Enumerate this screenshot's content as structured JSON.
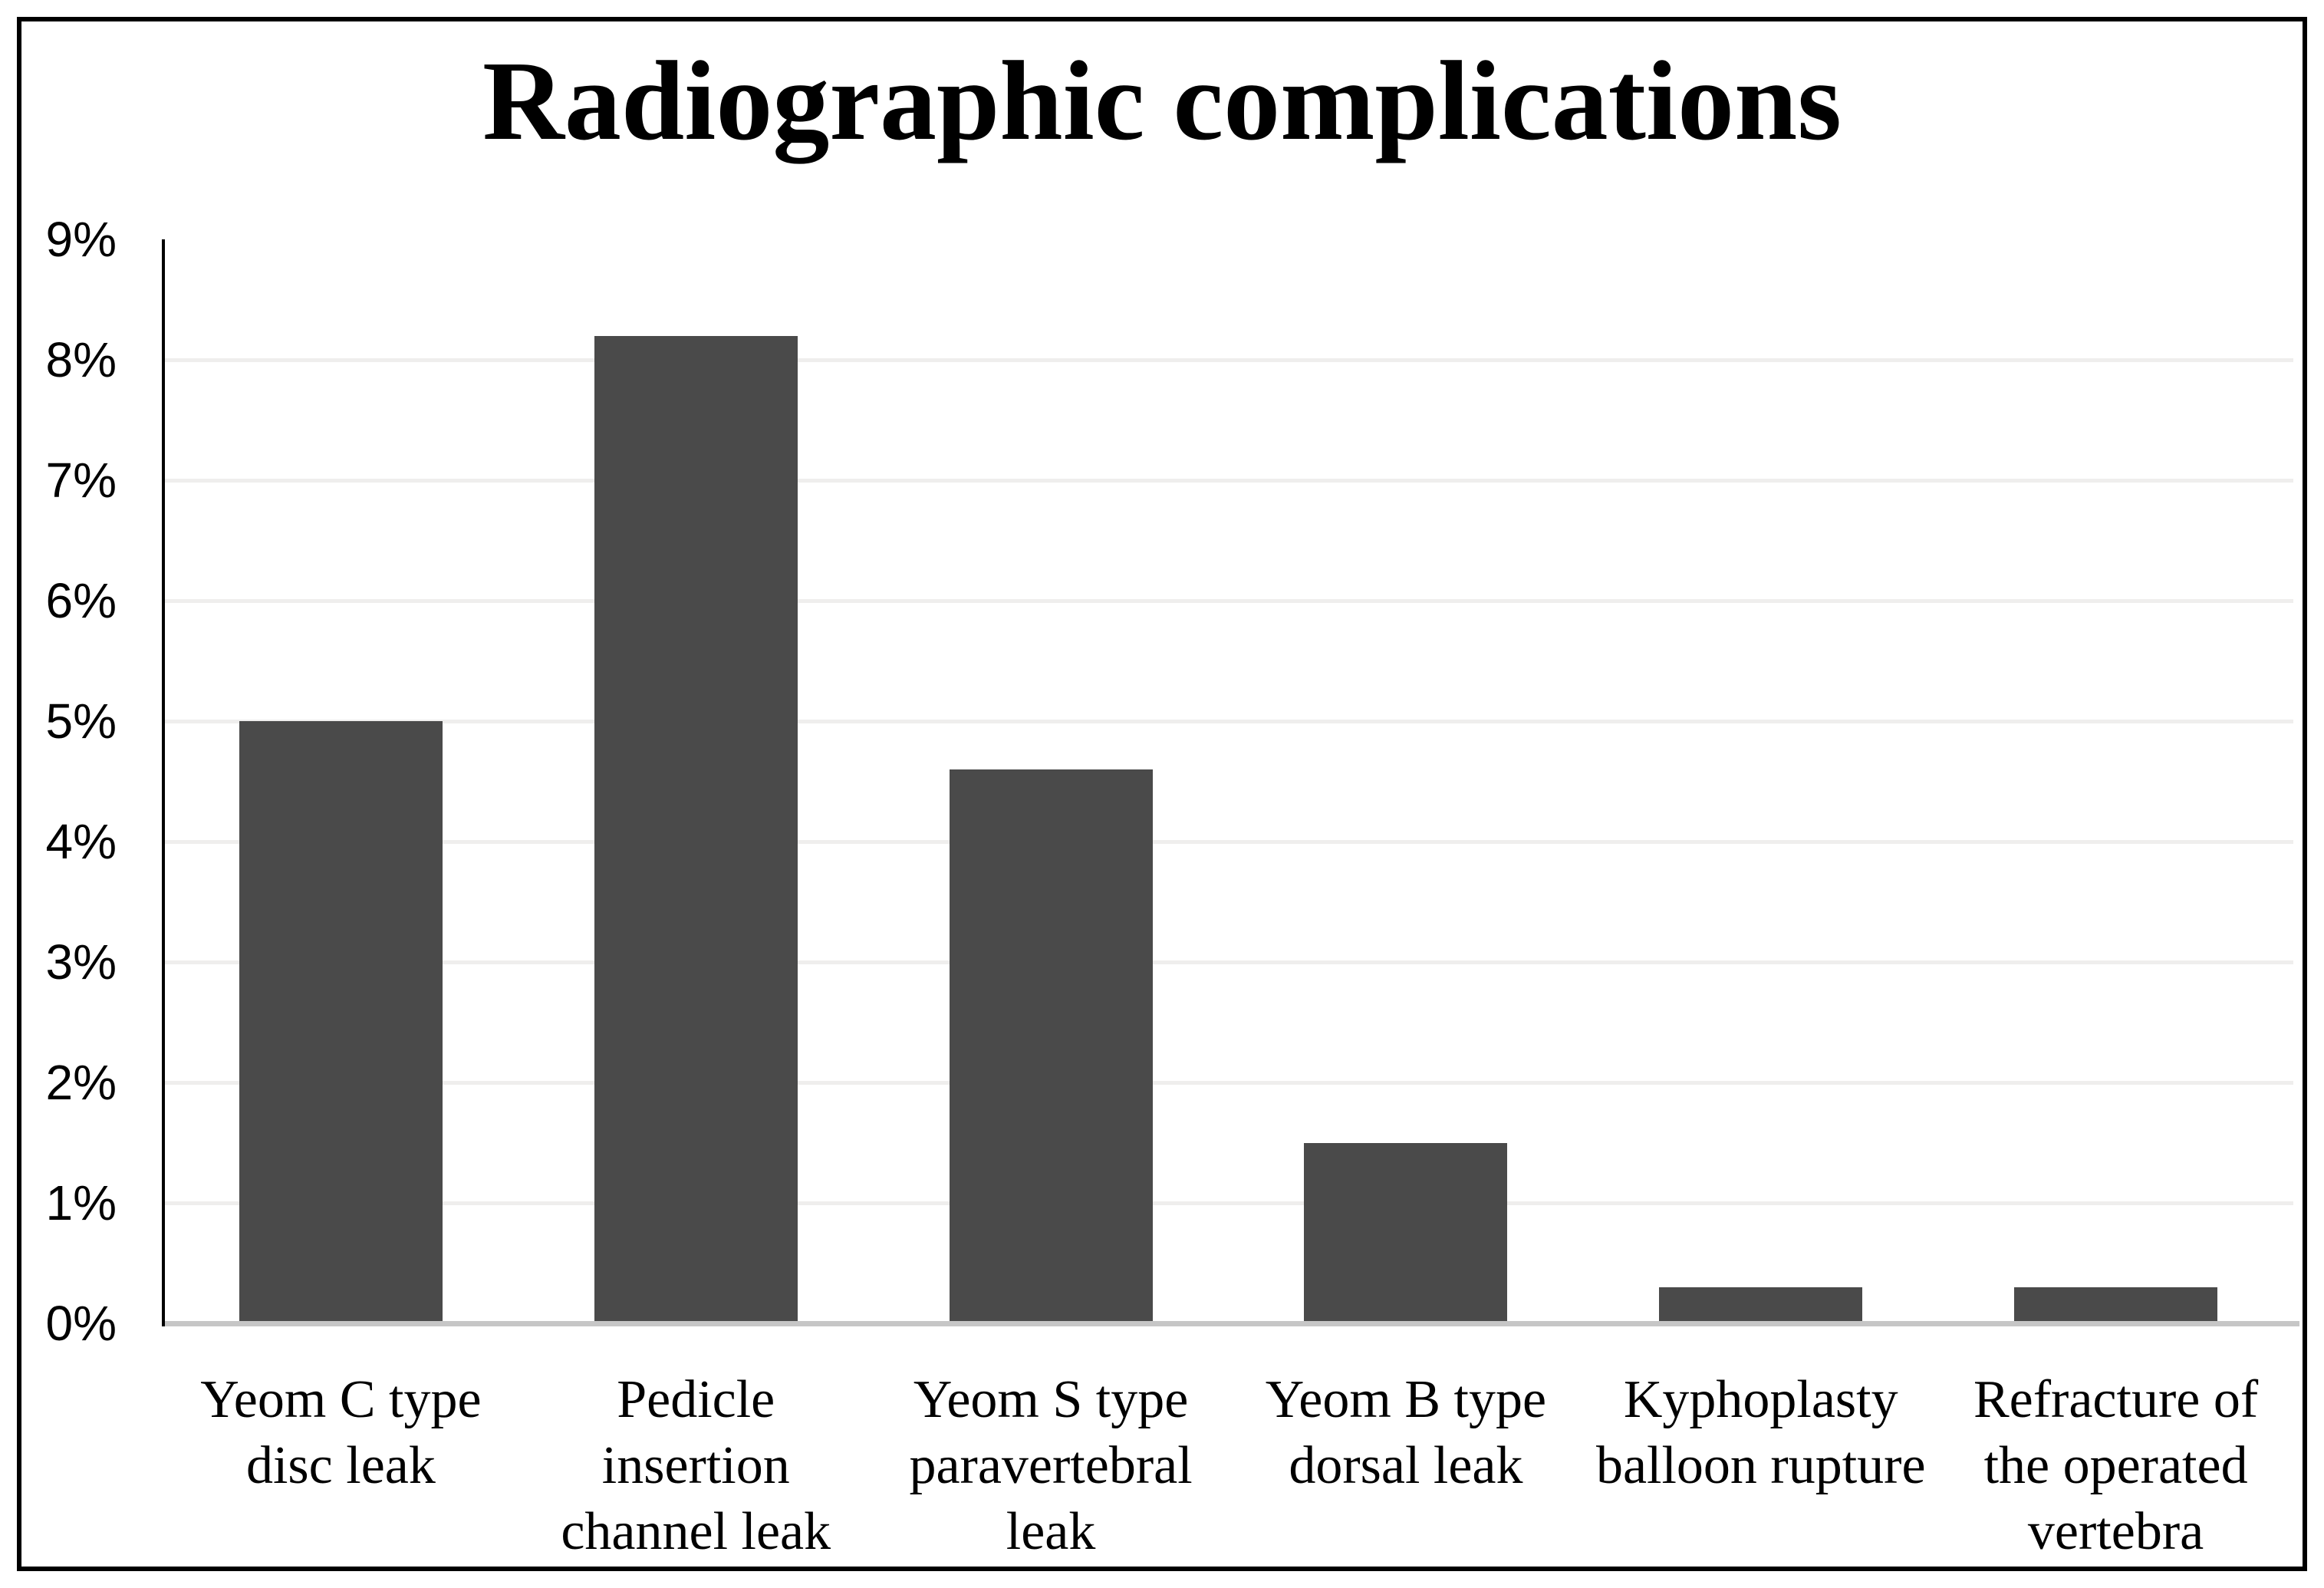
{
  "chart_data": {
    "type": "bar",
    "title": "Radiographic complications",
    "categories": [
      [
        "Yeom C type",
        "disc leak"
      ],
      [
        "Pedicle",
        "insertion",
        "channel leak"
      ],
      [
        "Yeom S type",
        "paravertebral",
        "leak"
      ],
      [
        "Yeom B type",
        "dorsal leak"
      ],
      [
        "Kyphoplasty",
        "balloon rupture"
      ],
      [
        "Refracture of",
        "the operated",
        "vertebra"
      ]
    ],
    "values": [
      5.0,
      8.2,
      4.6,
      1.5,
      0.3,
      0.3
    ],
    "xlabel": "",
    "ylabel": "",
    "ylim": [
      0,
      9
    ],
    "ytick_step": 1,
    "ytick_labels": [
      "0%",
      "1%",
      "2%",
      "3%",
      "4%",
      "5%",
      "6%",
      "7%",
      "8%",
      "9%"
    ],
    "grid": true,
    "legend_position": "none",
    "bar_color": "#4a4a4a",
    "axis_color": "#000000",
    "gridline_color": "#efeeed",
    "baseline_color": "#c6c6c6"
  }
}
